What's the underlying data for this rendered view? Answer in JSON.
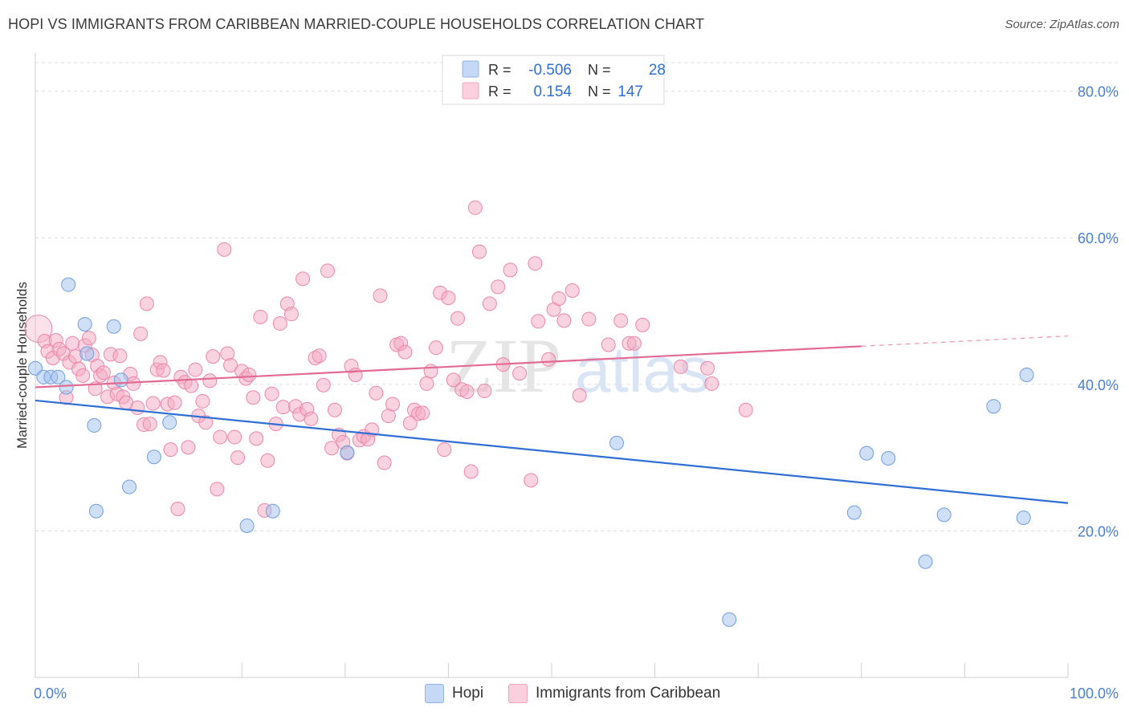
{
  "header": {
    "title": "HOPI VS IMMIGRANTS FROM CARIBBEAN MARRIED-COUPLE HOUSEHOLDS CORRELATION CHART",
    "source": "Source: ZipAtlas.com"
  },
  "watermark": {
    "zip": "ZIP",
    "atlas": "atlas"
  },
  "stats": [
    {
      "r_label": "R =",
      "r_value": "-0.506",
      "n_label": "N =",
      "n_value": "28",
      "color": "#9ec0ee"
    },
    {
      "r_label": "R =",
      "r_value": "0.154",
      "n_label": "N =",
      "n_value": "147",
      "color": "#f4a9c2"
    }
  ],
  "legend": {
    "series": [
      "Hopi",
      "Immigrants from Caribbean"
    ]
  },
  "chart_data": {
    "type": "scatter",
    "title": "HOPI VS IMMIGRANTS FROM CARIBBEAN MARRIED-COUPLE HOUSEHOLDS CORRELATION CHART",
    "xlabel": "",
    "ylabel": "Married-couple Households",
    "xlim": [
      0,
      100
    ],
    "ylim": [
      0,
      85
    ],
    "x_tick_labels": [
      "0.0%",
      "100.0%"
    ],
    "y_ticks": [
      20,
      40,
      60,
      80
    ],
    "y_tick_labels": [
      "20.0%",
      "40.0%",
      "60.0%",
      "80.0%"
    ],
    "grid": "horizontal dashed",
    "legend_position": "bottom-center",
    "series": [
      {
        "name": "Hopi",
        "color": "#9ec0ee",
        "edge": "#6f9fe0",
        "trend_color": "#2f6fd6",
        "trend": {
          "x": [
            0,
            100
          ],
          "y": [
            37.8,
            23.8
          ]
        },
        "points": [
          {
            "x": 0.0,
            "y": 42.2
          },
          {
            "x": 0.8,
            "y": 41.0
          },
          {
            "x": 1.5,
            "y": 41.0
          },
          {
            "x": 2.2,
            "y": 41.0
          },
          {
            "x": 3.0,
            "y": 39.6
          },
          {
            "x": 3.2,
            "y": 53.6
          },
          {
            "x": 4.8,
            "y": 48.2
          },
          {
            "x": 5.7,
            "y": 34.4
          },
          {
            "x": 5.9,
            "y": 22.7
          },
          {
            "x": 7.6,
            "y": 47.9
          },
          {
            "x": 8.3,
            "y": 40.6
          },
          {
            "x": 9.1,
            "y": 26.0
          },
          {
            "x": 11.5,
            "y": 30.1
          },
          {
            "x": 13.0,
            "y": 34.8
          },
          {
            "x": 20.5,
            "y": 20.7
          },
          {
            "x": 23.0,
            "y": 22.7
          },
          {
            "x": 30.2,
            "y": 30.7
          },
          {
            "x": 56.3,
            "y": 32.0
          },
          {
            "x": 67.2,
            "y": 7.9
          },
          {
            "x": 79.3,
            "y": 22.5
          },
          {
            "x": 80.5,
            "y": 30.6
          },
          {
            "x": 82.6,
            "y": 29.9
          },
          {
            "x": 88.0,
            "y": 22.2
          },
          {
            "x": 86.2,
            "y": 15.8
          },
          {
            "x": 92.8,
            "y": 37.0
          },
          {
            "x": 95.7,
            "y": 21.8
          },
          {
            "x": 96.0,
            "y": 41.3
          },
          {
            "x": 5.0,
            "y": 44.2
          }
        ]
      },
      {
        "name": "Immigrants from Caribbean",
        "color": "#f4a9c2",
        "edge": "#ec86a8",
        "trend_color": "#e26a93",
        "trend": {
          "x": [
            0,
            80
          ],
          "y": [
            39.6,
            45.2
          ]
        },
        "trend_dashed_to": {
          "x": 100,
          "y": 46.6
        },
        "points": [
          {
            "x": 0.3,
            "y": 47.6
          },
          {
            "x": 0.9,
            "y": 45.9
          },
          {
            "x": 1.2,
            "y": 44.5
          },
          {
            "x": 1.7,
            "y": 43.6
          },
          {
            "x": 2.0,
            "y": 46.0
          },
          {
            "x": 2.3,
            "y": 44.8
          },
          {
            "x": 2.7,
            "y": 44.2
          },
          {
            "x": 3.0,
            "y": 38.2
          },
          {
            "x": 3.3,
            "y": 43.0
          },
          {
            "x": 3.6,
            "y": 45.6
          },
          {
            "x": 3.9,
            "y": 43.8
          },
          {
            "x": 4.2,
            "y": 42.1
          },
          {
            "x": 4.6,
            "y": 41.2
          },
          {
            "x": 4.8,
            "y": 45.3
          },
          {
            "x": 5.2,
            "y": 46.3
          },
          {
            "x": 5.5,
            "y": 44.0
          },
          {
            "x": 5.8,
            "y": 39.4
          },
          {
            "x": 6.0,
            "y": 42.5
          },
          {
            "x": 6.3,
            "y": 41.2
          },
          {
            "x": 6.6,
            "y": 41.6
          },
          {
            "x": 7.0,
            "y": 38.3
          },
          {
            "x": 7.3,
            "y": 44.1
          },
          {
            "x": 7.6,
            "y": 40.2
          },
          {
            "x": 7.9,
            "y": 38.7
          },
          {
            "x": 8.2,
            "y": 43.9
          },
          {
            "x": 8.5,
            "y": 38.3
          },
          {
            "x": 8.8,
            "y": 37.5
          },
          {
            "x": 9.2,
            "y": 41.4
          },
          {
            "x": 9.5,
            "y": 40.1
          },
          {
            "x": 9.9,
            "y": 36.8
          },
          {
            "x": 10.2,
            "y": 46.9
          },
          {
            "x": 10.5,
            "y": 34.5
          },
          {
            "x": 10.8,
            "y": 51.0
          },
          {
            "x": 11.1,
            "y": 34.6
          },
          {
            "x": 11.4,
            "y": 37.4
          },
          {
            "x": 11.8,
            "y": 42.0
          },
          {
            "x": 12.1,
            "y": 43.0
          },
          {
            "x": 12.4,
            "y": 41.9
          },
          {
            "x": 12.8,
            "y": 37.3
          },
          {
            "x": 13.1,
            "y": 31.1
          },
          {
            "x": 13.5,
            "y": 37.5
          },
          {
            "x": 13.8,
            "y": 23.0
          },
          {
            "x": 14.1,
            "y": 41.0
          },
          {
            "x": 14.5,
            "y": 40.3
          },
          {
            "x": 14.8,
            "y": 31.4
          },
          {
            "x": 15.1,
            "y": 39.8
          },
          {
            "x": 15.5,
            "y": 42.0
          },
          {
            "x": 15.8,
            "y": 35.7
          },
          {
            "x": 16.2,
            "y": 37.7
          },
          {
            "x": 16.5,
            "y": 34.8
          },
          {
            "x": 16.9,
            "y": 40.5
          },
          {
            "x": 17.2,
            "y": 43.8
          },
          {
            "x": 17.6,
            "y": 25.7
          },
          {
            "x": 17.9,
            "y": 32.8
          },
          {
            "x": 18.3,
            "y": 58.4
          },
          {
            "x": 18.6,
            "y": 44.2
          },
          {
            "x": 18.9,
            "y": 42.6
          },
          {
            "x": 19.3,
            "y": 32.8
          },
          {
            "x": 19.6,
            "y": 30.0
          },
          {
            "x": 20.0,
            "y": 41.8
          },
          {
            "x": 20.4,
            "y": 40.8
          },
          {
            "x": 20.7,
            "y": 41.3
          },
          {
            "x": 21.1,
            "y": 38.2
          },
          {
            "x": 21.4,
            "y": 32.6
          },
          {
            "x": 21.8,
            "y": 49.2
          },
          {
            "x": 22.2,
            "y": 22.8
          },
          {
            "x": 22.5,
            "y": 29.6
          },
          {
            "x": 22.9,
            "y": 38.7
          },
          {
            "x": 23.3,
            "y": 34.6
          },
          {
            "x": 23.7,
            "y": 48.3
          },
          {
            "x": 24.0,
            "y": 36.9
          },
          {
            "x": 24.4,
            "y": 51.0
          },
          {
            "x": 24.8,
            "y": 49.6
          },
          {
            "x": 25.2,
            "y": 37.0
          },
          {
            "x": 25.6,
            "y": 35.9
          },
          {
            "x": 25.9,
            "y": 54.4
          },
          {
            "x": 26.3,
            "y": 36.6
          },
          {
            "x": 26.7,
            "y": 35.3
          },
          {
            "x": 27.1,
            "y": 43.6
          },
          {
            "x": 27.5,
            "y": 43.9
          },
          {
            "x": 27.9,
            "y": 39.9
          },
          {
            "x": 28.3,
            "y": 55.5
          },
          {
            "x": 28.7,
            "y": 31.3
          },
          {
            "x": 29.0,
            "y": 36.5
          },
          {
            "x": 29.4,
            "y": 33.1
          },
          {
            "x": 29.8,
            "y": 32.1
          },
          {
            "x": 30.2,
            "y": 30.6
          },
          {
            "x": 30.6,
            "y": 42.5
          },
          {
            "x": 31.0,
            "y": 41.3
          },
          {
            "x": 31.4,
            "y": 32.4
          },
          {
            "x": 31.8,
            "y": 32.9
          },
          {
            "x": 32.2,
            "y": 32.5
          },
          {
            "x": 32.6,
            "y": 33.8
          },
          {
            "x": 33.0,
            "y": 38.8
          },
          {
            "x": 33.4,
            "y": 52.1
          },
          {
            "x": 33.8,
            "y": 29.3
          },
          {
            "x": 34.2,
            "y": 35.7
          },
          {
            "x": 34.6,
            "y": 37.3
          },
          {
            "x": 35.0,
            "y": 45.4
          },
          {
            "x": 35.4,
            "y": 45.6
          },
          {
            "x": 35.8,
            "y": 44.4
          },
          {
            "x": 36.3,
            "y": 34.7
          },
          {
            "x": 36.7,
            "y": 36.5
          },
          {
            "x": 37.1,
            "y": 36.0
          },
          {
            "x": 37.5,
            "y": 36.1
          },
          {
            "x": 37.9,
            "y": 40.1
          },
          {
            "x": 38.3,
            "y": 41.8
          },
          {
            "x": 38.8,
            "y": 45.0
          },
          {
            "x": 39.2,
            "y": 52.5
          },
          {
            "x": 39.6,
            "y": 31.1
          },
          {
            "x": 40.0,
            "y": 51.8
          },
          {
            "x": 40.5,
            "y": 40.6
          },
          {
            "x": 40.9,
            "y": 49.0
          },
          {
            "x": 41.3,
            "y": 39.3
          },
          {
            "x": 41.8,
            "y": 39.0
          },
          {
            "x": 42.2,
            "y": 28.1
          },
          {
            "x": 42.6,
            "y": 64.1
          },
          {
            "x": 43.0,
            "y": 58.1
          },
          {
            "x": 43.5,
            "y": 39.1
          },
          {
            "x": 44.0,
            "y": 51.0
          },
          {
            "x": 44.8,
            "y": 53.3
          },
          {
            "x": 45.3,
            "y": 42.7
          },
          {
            "x": 46.0,
            "y": 55.6
          },
          {
            "x": 46.9,
            "y": 41.5
          },
          {
            "x": 48.0,
            "y": 26.9
          },
          {
            "x": 48.4,
            "y": 56.5
          },
          {
            "x": 48.7,
            "y": 48.6
          },
          {
            "x": 49.7,
            "y": 43.4
          },
          {
            "x": 50.2,
            "y": 50.2
          },
          {
            "x": 50.7,
            "y": 51.7
          },
          {
            "x": 51.2,
            "y": 48.7
          },
          {
            "x": 52.0,
            "y": 52.8
          },
          {
            "x": 52.7,
            "y": 38.5
          },
          {
            "x": 53.6,
            "y": 48.9
          },
          {
            "x": 55.5,
            "y": 45.4
          },
          {
            "x": 56.7,
            "y": 48.7
          },
          {
            "x": 57.5,
            "y": 45.6
          },
          {
            "x": 58.0,
            "y": 45.6
          },
          {
            "x": 58.8,
            "y": 48.1
          },
          {
            "x": 62.5,
            "y": 42.4
          },
          {
            "x": 65.1,
            "y": 42.2
          },
          {
            "x": 65.5,
            "y": 40.1
          },
          {
            "x": 68.8,
            "y": 36.5
          }
        ]
      }
    ]
  }
}
